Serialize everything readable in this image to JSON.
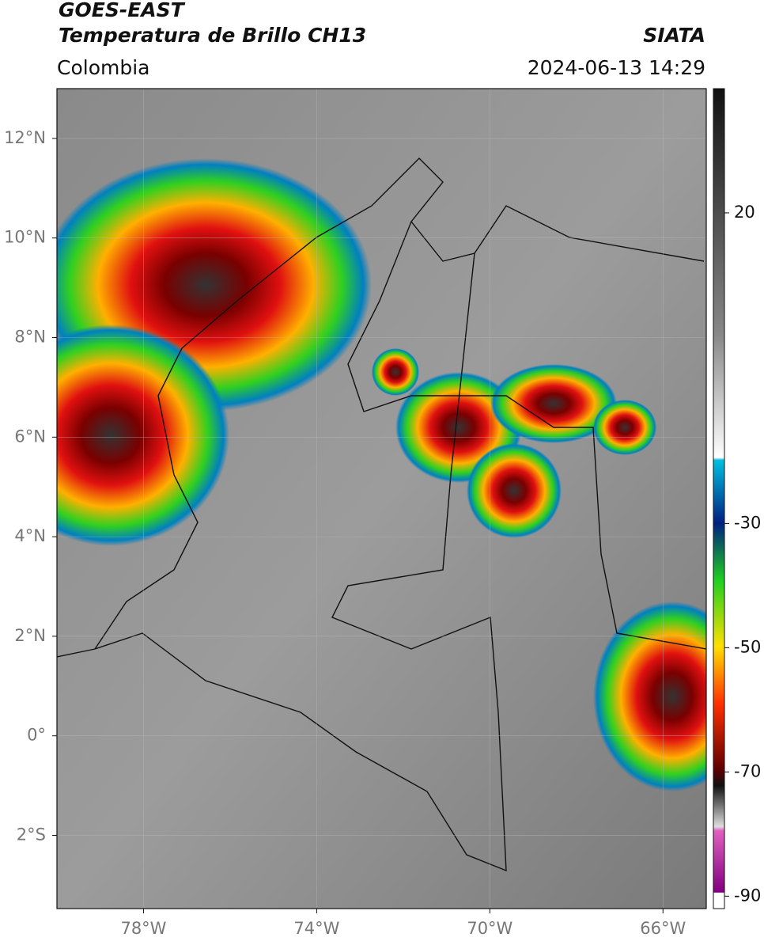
{
  "header": {
    "title": "GOES-EAST",
    "subtitle": "Temperatura de Brillo CH13",
    "source": "SIATA",
    "region": "Colombia",
    "timestamp": "2024-06-13 14:29"
  },
  "map": {
    "xlim": [
      -80,
      -65
    ],
    "ylim": [
      -3.47,
      13
    ],
    "xticks": [
      {
        "value": -78,
        "label": "78°W"
      },
      {
        "value": -74,
        "label": "74°W"
      },
      {
        "value": -70,
        "label": "70°W"
      },
      {
        "value": -66,
        "label": "66°W"
      }
    ],
    "yticks": [
      {
        "value": 12,
        "label": "12°N"
      },
      {
        "value": 10,
        "label": "10°N"
      },
      {
        "value": 8,
        "label": "8°N"
      },
      {
        "value": 6,
        "label": "6°N"
      },
      {
        "value": 4,
        "label": "4°N"
      },
      {
        "value": 2,
        "label": "2°N"
      },
      {
        "value": 0,
        "label": "0°"
      },
      {
        "value": -2,
        "label": "2°S"
      }
    ],
    "grid": true
  },
  "colorbar": {
    "lim": [
      -92,
      40
    ],
    "ticks": [
      20,
      -30,
      -50,
      -70,
      -90
    ]
  }
}
